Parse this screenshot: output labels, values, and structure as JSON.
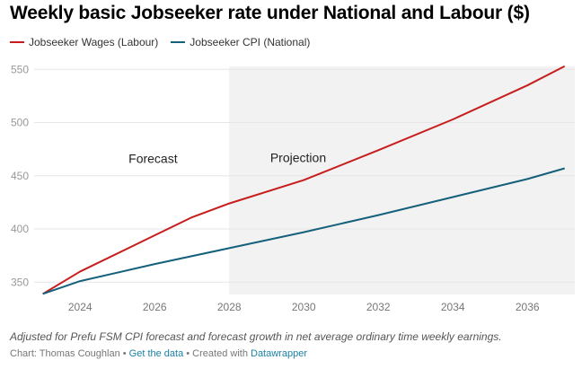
{
  "title": "Weekly basic Jobseeker rate under National and Labour ($)",
  "chart_data": {
    "type": "line",
    "title": "Weekly basic Jobseeker rate under National and Labour ($)",
    "xlabel": "",
    "ylabel": "",
    "xlim": [
      2023,
      2037
    ],
    "ylim": [
      339,
      553
    ],
    "x_ticks": [
      2024,
      2026,
      2028,
      2030,
      2032,
      2034,
      2036
    ],
    "y_ticks": [
      350,
      400,
      450,
      500,
      550
    ],
    "grid": true,
    "legend_position": "top-left",
    "shaded_region": {
      "from": 2028,
      "to": 2037.3,
      "label": "Projection"
    },
    "annotations": [
      {
        "text": "Forecast",
        "x": 2025.3,
        "y": 462
      },
      {
        "text": "Projection",
        "x": 2029.1,
        "y": 463
      }
    ],
    "series": [
      {
        "name": "Jobseeker Wages (Labour)",
        "color": "#c71e1d",
        "x": [
          2023,
          2024,
          2026,
          2027,
          2028,
          2030,
          2032,
          2034,
          2036,
          2037
        ],
        "values": [
          339,
          360,
          394,
          411,
          424,
          446,
          474,
          503,
          535,
          553
        ]
      },
      {
        "name": "Jobseeker CPI (National)",
        "color": "#15607a",
        "x": [
          2023,
          2024,
          2026,
          2028,
          2030,
          2032,
          2034,
          2036,
          2037
        ],
        "values": [
          339,
          351,
          367,
          382,
          397,
          413,
          430,
          447,
          457
        ]
      }
    ]
  },
  "notes": "Adjusted for Prefu FSM CPI forecast and forecast growth in net average ordinary time weekly earnings.",
  "footer": {
    "byline": "Chart: Thomas Coughlan",
    "sep1": " • ",
    "get_data": "Get the data",
    "sep2": " • Created with ",
    "tool": "Datawrapper"
  }
}
